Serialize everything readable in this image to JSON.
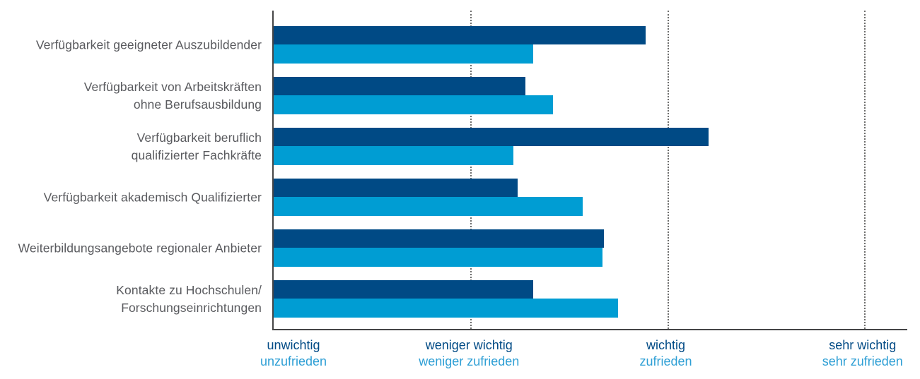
{
  "chart_data": {
    "type": "bar",
    "orientation": "horizontal",
    "title": "",
    "grid": "dotted-vertical",
    "legend_position": "none",
    "categories": [
      [
        "Verfügbarkeit geeigneter Auszubildender"
      ],
      [
        "Verfügbarkeit von Arbeitskräften",
        "ohne Berufsausbildung"
      ],
      [
        "Verfügbarkeit beruflich",
        "qualifizierter Fachkräfte"
      ],
      [
        "Verfügbarkeit akademisch Qualifizierter"
      ],
      [
        "Weiterbildungsangebote regionaler Anbieter"
      ],
      [
        "Kontakte zu Hochschulen/",
        "Forschungseinrichtungen"
      ]
    ],
    "series": [
      {
        "id": "wichtig-skala",
        "position": "top-bar",
        "color": "#004a85",
        "values": [
          2.89,
          2.28,
          3.21,
          2.24,
          2.68,
          2.32
        ]
      },
      {
        "id": "zufrieden-skala",
        "position": "bottom-bar",
        "color": "#009dd3",
        "values": [
          2.32,
          2.42,
          2.22,
          2.57,
          2.67,
          2.75
        ]
      }
    ],
    "x_axis": {
      "range": [
        1,
        4.22
      ],
      "ticks": [
        {
          "value": 1,
          "line1": "unwichtig",
          "line2": "unzufrieden"
        },
        {
          "value": 2,
          "line1": "weniger wichtig",
          "line2": "weniger zufrieden"
        },
        {
          "value": 3,
          "line1": "wichtig",
          "line2": "zufrieden"
        },
        {
          "value": 4,
          "line1": "sehr wichtig",
          "line2": "sehr zufrieden"
        }
      ],
      "tick_line1_color": "#004a85",
      "tick_line2_color": "#2e9fd5"
    },
    "colors": {
      "axis_line": "#454546",
      "gridline": "#6e6e6d",
      "category_label": "#595a5e"
    }
  }
}
